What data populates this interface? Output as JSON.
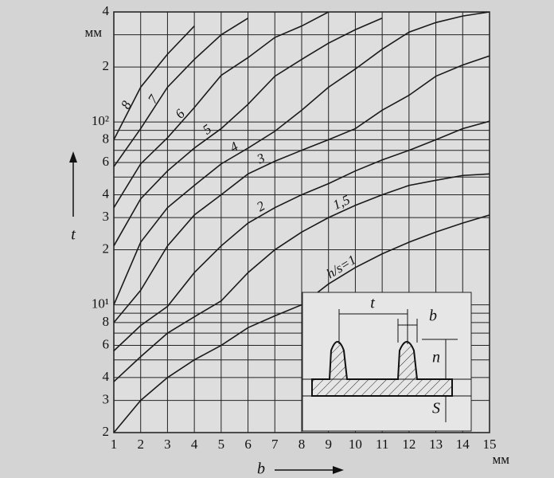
{
  "chart_data": {
    "type": "line",
    "y_label": "t",
    "x_label": "b",
    "y_unit": "мм",
    "x_unit": "мм",
    "x": [
      1,
      2,
      3,
      4,
      5,
      6,
      7,
      8,
      9,
      10,
      11,
      12,
      13,
      14,
      15
    ],
    "xlim": [
      1,
      15
    ],
    "xticks": [
      1,
      2,
      3,
      4,
      5,
      6,
      7,
      8,
      9,
      10,
      11,
      12,
      13,
      14,
      15
    ],
    "ylim": [
      2,
      400
    ],
    "yscale": "log",
    "yticks": [
      2,
      3,
      4,
      6,
      8,
      {
        "value": 10,
        "label": "10¹"
      },
      {
        "value": 20,
        "label": "2"
      },
      {
        "value": 30,
        "label": "3"
      },
      {
        "value": 40,
        "label": "4"
      },
      {
        "value": 60,
        "label": "6"
      },
      {
        "value": 80,
        "label": "8"
      },
      {
        "value": 100,
        "label": "10²"
      },
      {
        "value": 200,
        "label": "2"
      },
      {
        "value": 400,
        "label": "4"
      }
    ],
    "y_minor_grid": [
      5,
      7,
      9,
      50,
      70,
      90,
      300
    ],
    "grid": true,
    "color": "#1a1a1a",
    "series": [
      {
        "name": "h/s=1",
        "values": [
          2,
          3,
          4,
          5,
          6,
          7.5,
          8.7,
          10,
          13,
          16,
          19,
          22,
          25,
          28,
          31
        ]
      },
      {
        "name": "1,5",
        "values": [
          3.8,
          5.2,
          7,
          8.6,
          10.5,
          15,
          20,
          25,
          30,
          35,
          40,
          45,
          48,
          51,
          52
        ]
      },
      {
        "name": "2",
        "values": [
          5.6,
          7.7,
          9.8,
          15,
          21,
          28,
          34,
          40,
          46,
          54,
          62,
          70,
          80,
          92,
          101
        ]
      },
      {
        "name": "3",
        "values": [
          8,
          12,
          21,
          31,
          40,
          52,
          61,
          70,
          80,
          92,
          116,
          140,
          178,
          205,
          230
        ]
      },
      {
        "name": "4",
        "values": [
          10,
          22,
          34,
          45,
          59,
          72,
          89,
          116,
          155,
          195,
          250,
          310,
          350,
          380,
          400
        ]
      },
      {
        "name": "5",
        "values": [
          21,
          38,
          54,
          72,
          92,
          125,
          178,
          220,
          270,
          320,
          370,
          null,
          null,
          null,
          null
        ]
      },
      {
        "name": "6",
        "values": [
          34,
          59,
          82,
          120,
          180,
          225,
          290,
          335,
          400,
          null,
          null,
          null,
          null,
          null,
          null
        ]
      },
      {
        "name": "7",
        "values": [
          57,
          92,
          155,
          220,
          300,
          370,
          null,
          null,
          null,
          null,
          null,
          null,
          null,
          null,
          null
        ]
      },
      {
        "name": "8",
        "values": [
          80,
          155,
          235,
          335,
          null,
          null,
          null,
          null,
          null,
          null,
          null,
          null,
          null,
          null,
          null
        ]
      }
    ]
  },
  "inset": {
    "labels": [
      "t",
      "b",
      "n",
      "S"
    ]
  }
}
